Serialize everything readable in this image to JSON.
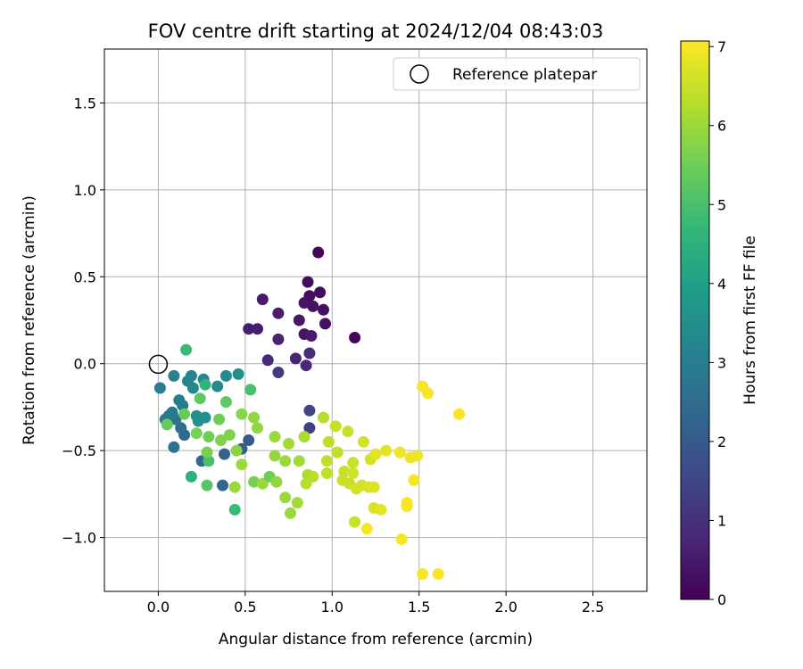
{
  "chart_data": {
    "type": "scatter",
    "title": "FOV centre drift starting at 2024/12/04 08:43:03",
    "xlabel": "Angular distance from reference (arcmin)",
    "ylabel": "Rotation from reference (arcmin)",
    "xlim": [
      -0.31,
      2.81
    ],
    "ylim": [
      -1.31,
      1.81
    ],
    "xticks": [
      0.0,
      0.5,
      1.0,
      1.5,
      2.0,
      2.5
    ],
    "xtick_labels": [
      "0.0",
      "0.5",
      "1.0",
      "1.5",
      "2.0",
      "2.5"
    ],
    "yticks": [
      -1.0,
      -0.5,
      0.0,
      0.5,
      1.0,
      1.5
    ],
    "ytick_labels": [
      "−1.0",
      "−0.5",
      "0.0",
      "0.5",
      "1.0",
      "1.5"
    ],
    "grid": true,
    "legend": {
      "placement": "top-right",
      "entries": [
        "Reference platepar"
      ]
    },
    "reference_point": {
      "x": 0.0,
      "y": 0.0
    },
    "colorbar": {
      "label": "Hours from first FF file",
      "min": 0,
      "max": 7.07,
      "ticks": [
        0,
        1,
        2,
        3,
        4,
        5,
        6,
        7
      ],
      "tick_labels": [
        "0",
        "1",
        "2",
        "3",
        "4",
        "5",
        "6",
        "7"
      ],
      "colormap": "viridis"
    },
    "points": [
      {
        "x": 0.92,
        "y": 0.64,
        "h": 0.1
      },
      {
        "x": 1.13,
        "y": 0.15,
        "h": 0.1
      },
      {
        "x": 0.86,
        "y": 0.47,
        "h": 0.2
      },
      {
        "x": 0.93,
        "y": 0.41,
        "h": 0.2
      },
      {
        "x": 0.87,
        "y": 0.39,
        "h": 0.2
      },
      {
        "x": 0.89,
        "y": 0.33,
        "h": 0.3
      },
      {
        "x": 0.95,
        "y": 0.31,
        "h": 0.3
      },
      {
        "x": 0.96,
        "y": 0.23,
        "h": 0.3
      },
      {
        "x": 0.84,
        "y": 0.35,
        "h": 0.4
      },
      {
        "x": 0.81,
        "y": 0.25,
        "h": 0.4
      },
      {
        "x": 0.84,
        "y": 0.17,
        "h": 0.4
      },
      {
        "x": 0.88,
        "y": 0.16,
        "h": 0.5
      },
      {
        "x": 0.6,
        "y": 0.37,
        "h": 0.5
      },
      {
        "x": 0.69,
        "y": 0.29,
        "h": 0.6
      },
      {
        "x": 0.52,
        "y": 0.2,
        "h": 0.6
      },
      {
        "x": 0.57,
        "y": 0.2,
        "h": 0.6
      },
      {
        "x": 0.69,
        "y": 0.14,
        "h": 0.7
      },
      {
        "x": 0.63,
        "y": 0.02,
        "h": 0.8
      },
      {
        "x": 0.79,
        "y": 0.03,
        "h": 0.7
      },
      {
        "x": 0.85,
        "y": -0.01,
        "h": 0.8
      },
      {
        "x": 0.87,
        "y": 0.06,
        "h": 0.9
      },
      {
        "x": 0.69,
        "y": -0.05,
        "h": 1.2
      },
      {
        "x": 0.87,
        "y": -0.27,
        "h": 1.5
      },
      {
        "x": 0.87,
        "y": -0.37,
        "h": 1.3
      },
      {
        "x": 0.52,
        "y": -0.44,
        "h": 2.0
      },
      {
        "x": 0.48,
        "y": -0.49,
        "h": 2.1
      },
      {
        "x": 0.38,
        "y": -0.52,
        "h": 2.2
      },
      {
        "x": 0.37,
        "y": -0.7,
        "h": 2.3
      },
      {
        "x": 0.25,
        "y": -0.56,
        "h": 2.4
      },
      {
        "x": 0.15,
        "y": -0.41,
        "h": 2.4
      },
      {
        "x": 0.13,
        "y": -0.37,
        "h": 2.5
      },
      {
        "x": 0.09,
        "y": -0.48,
        "h": 2.6
      },
      {
        "x": 0.1,
        "y": -0.32,
        "h": 2.7
      },
      {
        "x": 0.06,
        "y": -0.3,
        "h": 2.8
      },
      {
        "x": 0.04,
        "y": -0.32,
        "h": 2.8
      },
      {
        "x": 0.08,
        "y": -0.28,
        "h": 2.9
      },
      {
        "x": 0.14,
        "y": -0.24,
        "h": 2.9
      },
      {
        "x": 0.12,
        "y": -0.21,
        "h": 3.0
      },
      {
        "x": 0.01,
        "y": -0.14,
        "h": 3.0
      },
      {
        "x": 0.09,
        "y": -0.07,
        "h": 3.1
      },
      {
        "x": 0.17,
        "y": -0.1,
        "h": 3.2
      },
      {
        "x": 0.19,
        "y": -0.07,
        "h": 3.2
      },
      {
        "x": 0.2,
        "y": -0.14,
        "h": 3.3
      },
      {
        "x": 0.26,
        "y": -0.09,
        "h": 3.3
      },
      {
        "x": 0.34,
        "y": -0.13,
        "h": 3.4
      },
      {
        "x": 0.39,
        "y": -0.07,
        "h": 3.4
      },
      {
        "x": 0.46,
        "y": -0.06,
        "h": 3.5
      },
      {
        "x": 0.22,
        "y": -0.3,
        "h": 3.5
      },
      {
        "x": 0.27,
        "y": -0.31,
        "h": 3.6
      },
      {
        "x": 0.23,
        "y": -0.33,
        "h": 3.6
      },
      {
        "x": 0.16,
        "y": 0.08,
        "h": 4.8
      },
      {
        "x": 0.27,
        "y": -0.12,
        "h": 4.6
      },
      {
        "x": 0.19,
        "y": -0.65,
        "h": 4.5
      },
      {
        "x": 0.44,
        "y": -0.84,
        "h": 4.8
      },
      {
        "x": 0.29,
        "y": -0.56,
        "h": 5.0
      },
      {
        "x": 0.53,
        "y": -0.15,
        "h": 5.0
      },
      {
        "x": 0.24,
        "y": -0.2,
        "h": 5.3
      },
      {
        "x": 0.39,
        "y": -0.22,
        "h": 5.3
      },
      {
        "x": 0.05,
        "y": -0.35,
        "h": 5.4
      },
      {
        "x": 0.15,
        "y": -0.29,
        "h": 5.4
      },
      {
        "x": 0.35,
        "y": -0.32,
        "h": 5.5
      },
      {
        "x": 0.29,
        "y": -0.42,
        "h": 5.5
      },
      {
        "x": 0.22,
        "y": -0.4,
        "h": 5.6
      },
      {
        "x": 0.28,
        "y": -0.51,
        "h": 5.6
      },
      {
        "x": 0.36,
        "y": -0.44,
        "h": 5.7
      },
      {
        "x": 0.41,
        "y": -0.41,
        "h": 5.7
      },
      {
        "x": 0.45,
        "y": -0.5,
        "h": 5.8
      },
      {
        "x": 0.48,
        "y": -0.29,
        "h": 5.8
      },
      {
        "x": 0.55,
        "y": -0.31,
        "h": 5.9
      },
      {
        "x": 0.57,
        "y": -0.37,
        "h": 5.9
      },
      {
        "x": 0.48,
        "y": -0.58,
        "h": 6.0
      },
      {
        "x": 0.44,
        "y": -0.71,
        "h": 6.0
      },
      {
        "x": 0.28,
        "y": -0.7,
        "h": 5.2
      },
      {
        "x": 0.55,
        "y": -0.68,
        "h": 5.6
      },
      {
        "x": 0.6,
        "y": -0.69,
        "h": 6.0
      },
      {
        "x": 0.64,
        "y": -0.65,
        "h": 5.5
      },
      {
        "x": 0.68,
        "y": -0.68,
        "h": 5.9
      },
      {
        "x": 0.73,
        "y": -0.77,
        "h": 6.0
      },
      {
        "x": 0.76,
        "y": -0.86,
        "h": 6.0
      },
      {
        "x": 0.8,
        "y": -0.8,
        "h": 6.1
      },
      {
        "x": 0.67,
        "y": -0.53,
        "h": 5.9
      },
      {
        "x": 0.73,
        "y": -0.56,
        "h": 6.0
      },
      {
        "x": 0.67,
        "y": -0.42,
        "h": 6.0
      },
      {
        "x": 0.75,
        "y": -0.46,
        "h": 6.1
      },
      {
        "x": 0.81,
        "y": -0.56,
        "h": 6.1
      },
      {
        "x": 0.84,
        "y": -0.42,
        "h": 6.2
      },
      {
        "x": 0.86,
        "y": -0.64,
        "h": 6.2
      },
      {
        "x": 0.85,
        "y": -0.69,
        "h": 6.3
      },
      {
        "x": 0.89,
        "y": -0.65,
        "h": 6.3
      },
      {
        "x": 0.97,
        "y": -0.63,
        "h": 6.4
      },
      {
        "x": 0.98,
        "y": -0.45,
        "h": 6.4
      },
      {
        "x": 1.03,
        "y": -0.51,
        "h": 6.4
      },
      {
        "x": 1.06,
        "y": -0.67,
        "h": 6.5
      },
      {
        "x": 1.07,
        "y": -0.62,
        "h": 6.5
      },
      {
        "x": 1.1,
        "y": -0.69,
        "h": 6.5
      },
      {
        "x": 1.12,
        "y": -0.63,
        "h": 6.6
      },
      {
        "x": 1.14,
        "y": -0.72,
        "h": 6.6
      },
      {
        "x": 1.17,
        "y": -0.7,
        "h": 6.6
      },
      {
        "x": 1.21,
        "y": -0.71,
        "h": 6.7
      },
      {
        "x": 1.24,
        "y": -0.71,
        "h": 6.7
      },
      {
        "x": 1.12,
        "y": -0.57,
        "h": 6.5
      },
      {
        "x": 1.22,
        "y": -0.55,
        "h": 6.6
      },
      {
        "x": 1.18,
        "y": -0.45,
        "h": 6.6
      },
      {
        "x": 1.02,
        "y": -0.36,
        "h": 6.5
      },
      {
        "x": 1.09,
        "y": -0.39,
        "h": 6.5
      },
      {
        "x": 0.95,
        "y": -0.31,
        "h": 6.3
      },
      {
        "x": 0.97,
        "y": -0.56,
        "h": 6.4
      },
      {
        "x": 1.13,
        "y": -0.91,
        "h": 6.5
      },
      {
        "x": 1.24,
        "y": -0.83,
        "h": 6.7
      },
      {
        "x": 1.28,
        "y": -0.84,
        "h": 6.8
      },
      {
        "x": 1.25,
        "y": -0.52,
        "h": 6.8
      },
      {
        "x": 1.31,
        "y": -0.5,
        "h": 6.8
      },
      {
        "x": 1.39,
        "y": -0.51,
        "h": 6.9
      },
      {
        "x": 1.45,
        "y": -0.54,
        "h": 6.9
      },
      {
        "x": 1.49,
        "y": -0.53,
        "h": 6.9
      },
      {
        "x": 1.47,
        "y": -0.67,
        "h": 7.0
      },
      {
        "x": 1.43,
        "y": -0.8,
        "h": 7.0
      },
      {
        "x": 1.43,
        "y": -0.82,
        "h": 7.0
      },
      {
        "x": 1.4,
        "y": -1.01,
        "h": 7.0
      },
      {
        "x": 1.2,
        "y": -0.95,
        "h": 7.0
      },
      {
        "x": 1.52,
        "y": -0.13,
        "h": 7.0
      },
      {
        "x": 1.55,
        "y": -0.17,
        "h": 7.0
      },
      {
        "x": 1.73,
        "y": -0.29,
        "h": 7.0
      },
      {
        "x": 1.52,
        "y": -1.21,
        "h": 7.0
      },
      {
        "x": 1.61,
        "y": -1.21,
        "h": 7.0
      }
    ]
  }
}
